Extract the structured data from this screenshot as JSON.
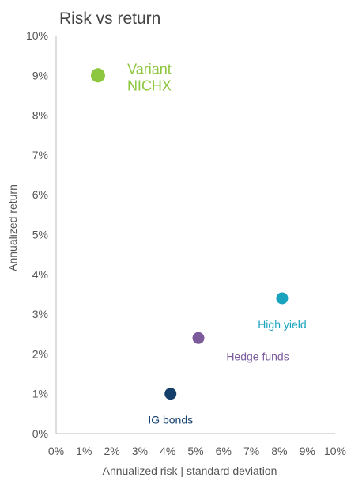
{
  "chart_data": {
    "type": "scatter",
    "title": "Risk vs return",
    "xlabel": "Annualized risk | standard deviation",
    "ylabel": "Annualized return",
    "xlim": [
      0,
      10
    ],
    "ylim": [
      0,
      10
    ],
    "x_ticks": [
      "0%",
      "1%",
      "2%",
      "3%",
      "4%",
      "5%",
      "6%",
      "7%",
      "8%",
      "9%",
      "10%"
    ],
    "y_ticks": [
      "0%",
      "1%",
      "2%",
      "3%",
      "4%",
      "5%",
      "6%",
      "7%",
      "8%",
      "9%",
      "10%"
    ],
    "grid": false,
    "series": [
      {
        "name": "IG bonds",
        "color": "#143f6b",
        "points": [
          {
            "x": 4.1,
            "y": 1.0
          }
        ],
        "label_lines": [
          "IG bonds"
        ],
        "label_pos": "below"
      },
      {
        "name": "Hedge funds",
        "color": "#7b5b9c",
        "points": [
          {
            "x": 5.1,
            "y": 2.4
          }
        ],
        "label_lines": [
          "Hedge funds"
        ],
        "label_pos": "below-right"
      },
      {
        "name": "High yield",
        "color": "#1aa3bf",
        "points": [
          {
            "x": 8.1,
            "y": 3.4
          }
        ],
        "label_lines": [
          "High yield"
        ],
        "label_pos": "below"
      },
      {
        "name": "Variant NICHX",
        "color": "#8dc63f",
        "points": [
          {
            "x": 1.5,
            "y": 9.0
          }
        ],
        "label_lines": [
          "Variant",
          "NICHX"
        ],
        "label_pos": "right"
      }
    ]
  }
}
